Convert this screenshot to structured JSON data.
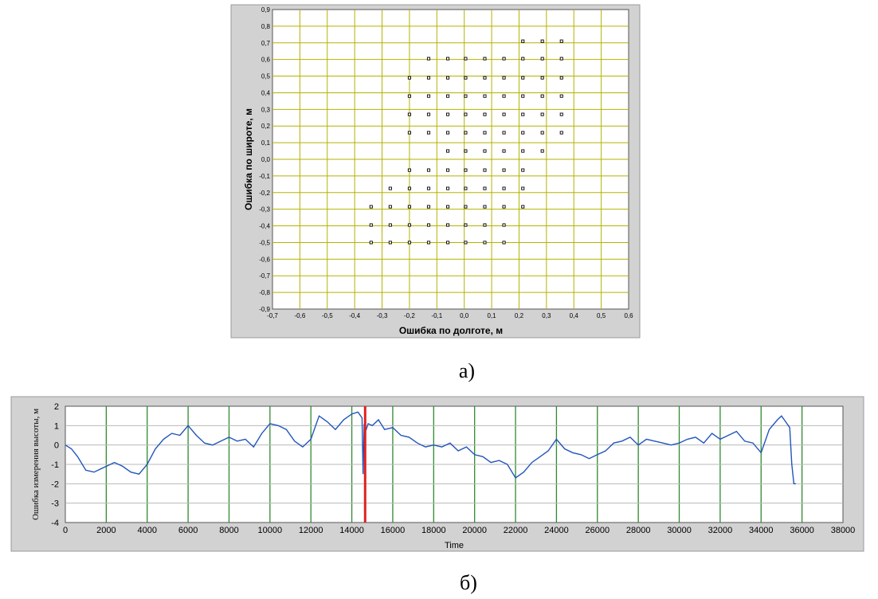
{
  "chart_data": [
    {
      "type": "scatter",
      "panel_label": "а)",
      "xlabel": "Ошибка по долготе, м",
      "ylabel": "Ошибка по широте, м",
      "xlim": [
        -0.7,
        0.6
      ],
      "ylim": [
        -0.9,
        0.9
      ],
      "xticks": [
        "-0,7",
        "-0,6",
        "-0,5",
        "-0,4",
        "-0,3",
        "-0,2",
        "-0,1",
        "0,0",
        "0,1",
        "0,2",
        "0,3",
        "0,4",
        "0,5",
        "0,6"
      ],
      "yticks": [
        "0,9",
        "0,8",
        "0,7",
        "0,6",
        "0,5",
        "0,4",
        "0,3",
        "0,2",
        "0,1",
        "0,0",
        "-0,1",
        "-0,2",
        "-0,3",
        "-0,4",
        "-0,5",
        "-0,6",
        "-0,7",
        "-0,8",
        "-0,9"
      ],
      "grid": true,
      "grid_color": "#b5b200",
      "marker_color": "#000000",
      "points": [
        {
          "x": 0.214,
          "y": 0.71
        },
        {
          "x": 0.285,
          "y": 0.71
        },
        {
          "x": 0.355,
          "y": 0.71
        },
        {
          "x": -0.13,
          "y": 0.605
        },
        {
          "x": -0.06,
          "y": 0.605
        },
        {
          "x": 0.005,
          "y": 0.605
        },
        {
          "x": 0.075,
          "y": 0.605
        },
        {
          "x": 0.145,
          "y": 0.605
        },
        {
          "x": 0.214,
          "y": 0.605
        },
        {
          "x": 0.285,
          "y": 0.605
        },
        {
          "x": 0.355,
          "y": 0.605
        },
        {
          "x": -0.2,
          "y": 0.49
        },
        {
          "x": -0.13,
          "y": 0.49
        },
        {
          "x": -0.06,
          "y": 0.49
        },
        {
          "x": 0.005,
          "y": 0.49
        },
        {
          "x": 0.075,
          "y": 0.49
        },
        {
          "x": 0.145,
          "y": 0.49
        },
        {
          "x": 0.214,
          "y": 0.49
        },
        {
          "x": 0.285,
          "y": 0.49
        },
        {
          "x": 0.355,
          "y": 0.49
        },
        {
          "x": -0.2,
          "y": 0.38
        },
        {
          "x": -0.13,
          "y": 0.38
        },
        {
          "x": -0.06,
          "y": 0.38
        },
        {
          "x": 0.005,
          "y": 0.38
        },
        {
          "x": 0.075,
          "y": 0.38
        },
        {
          "x": 0.145,
          "y": 0.38
        },
        {
          "x": 0.214,
          "y": 0.38
        },
        {
          "x": 0.285,
          "y": 0.38
        },
        {
          "x": 0.355,
          "y": 0.38
        },
        {
          "x": -0.2,
          "y": 0.27
        },
        {
          "x": -0.13,
          "y": 0.27
        },
        {
          "x": -0.06,
          "y": 0.27
        },
        {
          "x": 0.005,
          "y": 0.27
        },
        {
          "x": 0.075,
          "y": 0.27
        },
        {
          "x": 0.145,
          "y": 0.27
        },
        {
          "x": 0.214,
          "y": 0.27
        },
        {
          "x": 0.285,
          "y": 0.27
        },
        {
          "x": 0.355,
          "y": 0.27
        },
        {
          "x": -0.2,
          "y": 0.16
        },
        {
          "x": -0.13,
          "y": 0.16
        },
        {
          "x": -0.06,
          "y": 0.16
        },
        {
          "x": 0.005,
          "y": 0.16
        },
        {
          "x": 0.075,
          "y": 0.16
        },
        {
          "x": 0.145,
          "y": 0.16
        },
        {
          "x": 0.214,
          "y": 0.16
        },
        {
          "x": 0.285,
          "y": 0.16
        },
        {
          "x": 0.355,
          "y": 0.16
        },
        {
          "x": -0.06,
          "y": 0.05
        },
        {
          "x": 0.005,
          "y": 0.05
        },
        {
          "x": 0.075,
          "y": 0.05
        },
        {
          "x": 0.145,
          "y": 0.05
        },
        {
          "x": 0.214,
          "y": 0.05
        },
        {
          "x": 0.285,
          "y": 0.05
        },
        {
          "x": -0.2,
          "y": -0.065
        },
        {
          "x": -0.13,
          "y": -0.065
        },
        {
          "x": -0.06,
          "y": -0.065
        },
        {
          "x": 0.005,
          "y": -0.065
        },
        {
          "x": 0.075,
          "y": -0.065
        },
        {
          "x": 0.145,
          "y": -0.065
        },
        {
          "x": 0.214,
          "y": -0.065
        },
        {
          "x": -0.27,
          "y": -0.175
        },
        {
          "x": -0.2,
          "y": -0.175
        },
        {
          "x": -0.13,
          "y": -0.175
        },
        {
          "x": -0.06,
          "y": -0.175
        },
        {
          "x": 0.005,
          "y": -0.175
        },
        {
          "x": 0.075,
          "y": -0.175
        },
        {
          "x": 0.145,
          "y": -0.175
        },
        {
          "x": 0.214,
          "y": -0.175
        },
        {
          "x": -0.34,
          "y": -0.285
        },
        {
          "x": -0.27,
          "y": -0.285
        },
        {
          "x": -0.2,
          "y": -0.285
        },
        {
          "x": -0.13,
          "y": -0.285
        },
        {
          "x": -0.06,
          "y": -0.285
        },
        {
          "x": 0.005,
          "y": -0.285
        },
        {
          "x": 0.075,
          "y": -0.285
        },
        {
          "x": 0.145,
          "y": -0.285
        },
        {
          "x": 0.214,
          "y": -0.285
        },
        {
          "x": -0.34,
          "y": -0.395
        },
        {
          "x": -0.27,
          "y": -0.395
        },
        {
          "x": -0.2,
          "y": -0.395
        },
        {
          "x": -0.13,
          "y": -0.395
        },
        {
          "x": -0.06,
          "y": -0.395
        },
        {
          "x": 0.005,
          "y": -0.395
        },
        {
          "x": 0.075,
          "y": -0.395
        },
        {
          "x": 0.145,
          "y": -0.395
        },
        {
          "x": -0.34,
          "y": -0.5
        },
        {
          "x": -0.27,
          "y": -0.5
        },
        {
          "x": -0.2,
          "y": -0.5
        },
        {
          "x": -0.13,
          "y": -0.5
        },
        {
          "x": -0.06,
          "y": -0.5
        },
        {
          "x": 0.005,
          "y": -0.5
        },
        {
          "x": 0.075,
          "y": -0.5
        },
        {
          "x": 0.145,
          "y": -0.5
        }
      ]
    },
    {
      "type": "line",
      "panel_label": "б)",
      "xlabel": "Time",
      "ylabel": "Ошибка измерения высоты, м",
      "xlim": [
        0,
        38000
      ],
      "ylim": [
        -4,
        2
      ],
      "xticks": [
        "0",
        "2000",
        "4000",
        "6000",
        "8000",
        "10000",
        "12000",
        "14000",
        "16000",
        "18000",
        "20000",
        "22000",
        "24000",
        "26000",
        "28000",
        "30000",
        "32000",
        "34000",
        "36000",
        "38000"
      ],
      "yticks": [
        "2",
        "1",
        "0",
        "-1",
        "-2",
        "-3",
        "-4"
      ],
      "grid": true,
      "vgrid_color": "#2f8a2f",
      "hgrid_color": "#b8b8b8",
      "line_color": "#2255bb",
      "cursor_color": "#e02020",
      "cursor_x": 14650,
      "series": [
        {
          "x": [
            0,
            300,
            600,
            1000,
            1400,
            2000,
            2400,
            2800,
            3200,
            3600,
            4000,
            4400,
            4800,
            5200,
            5600,
            6000,
            6400,
            6800,
            7200,
            7600,
            8000,
            8400,
            8800,
            9200,
            9600,
            10000,
            10400,
            10800,
            11200,
            11600,
            12000,
            12400,
            12800,
            13200,
            13600,
            14000,
            14300,
            14500,
            14550,
            14600,
            14700,
            14800,
            15000,
            15300,
            15600,
            16000,
            16400,
            16800,
            17200,
            17600,
            18000,
            18400,
            18800,
            19200,
            19600,
            20000,
            20400,
            20800,
            21200,
            21600,
            22000,
            22400,
            22800,
            23200,
            23600,
            24000,
            24400,
            24800,
            25200,
            25600,
            26000,
            26400,
            26800,
            27200,
            27600,
            28000,
            28400,
            28800,
            29200,
            29600,
            30000,
            30400,
            30800,
            31200,
            31600,
            32000,
            32400,
            32800,
            33200,
            33600,
            34000,
            34400,
            34800,
            35000,
            35200,
            35400,
            35500,
            35600,
            35700
          ],
          "y": [
            0,
            -0.2,
            -0.6,
            -1.3,
            -1.4,
            -1.1,
            -0.9,
            -1.1,
            -1.4,
            -1.5,
            -1.0,
            -0.2,
            0.3,
            0.6,
            0.5,
            1.0,
            0.5,
            0.1,
            0.0,
            0.2,
            0.4,
            0.2,
            0.3,
            -0.1,
            0.6,
            1.1,
            1.0,
            0.8,
            0.2,
            -0.1,
            0.3,
            1.5,
            1.2,
            0.8,
            1.3,
            1.6,
            1.7,
            1.4,
            -1.5,
            1.0,
            0.8,
            1.1,
            1.0,
            1.3,
            0.8,
            0.9,
            0.5,
            0.4,
            0.1,
            -0.1,
            0.0,
            -0.1,
            0.1,
            -0.3,
            -0.1,
            -0.5,
            -0.6,
            -0.9,
            -0.8,
            -1.0,
            -1.7,
            -1.4,
            -0.9,
            -0.6,
            -0.3,
            0.3,
            -0.2,
            -0.4,
            -0.5,
            -0.7,
            -0.5,
            -0.3,
            0.1,
            0.2,
            0.4,
            0.0,
            0.3,
            0.2,
            0.1,
            0.0,
            0.1,
            0.3,
            0.4,
            0.1,
            0.6,
            0.3,
            0.5,
            0.7,
            0.2,
            0.1,
            -0.4,
            0.8,
            1.3,
            1.5,
            1.2,
            0.9,
            -1.0,
            -2.0,
            -2.0
          ]
        }
      ]
    }
  ]
}
